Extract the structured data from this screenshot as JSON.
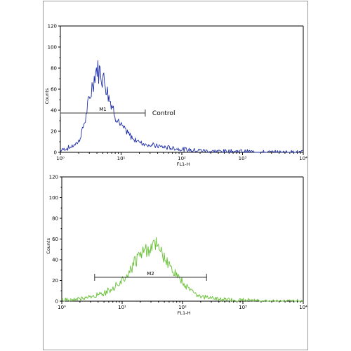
{
  "chart_data": [
    {
      "type": "line",
      "xlabel": "FL1-H",
      "ylabel": "Counts",
      "xscale": "log",
      "xlim": [
        1,
        10000
      ],
      "ylim": [
        0,
        120
      ],
      "x_ticks": [
        "10⁰",
        "10¹",
        "10²",
        "10³",
        "10⁴"
      ],
      "y_ticks": [
        "0",
        "20",
        "40",
        "60",
        "80",
        "100",
        "120"
      ],
      "gate": {
        "label": "M1",
        "range": [
          1,
          25
        ]
      },
      "annotation": "Control",
      "color": "#1f2fa8",
      "series": [
        {
          "x": [
            1.0,
            1.5,
            2.0,
            2.5,
            3.0,
            3.5,
            4.0,
            4.5,
            5.0,
            5.5,
            6.0,
            7.0,
            8.0,
            9.0,
            10,
            12,
            15,
            20,
            25,
            30,
            40,
            50,
            70,
            100,
            150,
            200,
            300,
            500,
            1000,
            2000,
            5000,
            10000
          ],
          "values": [
            2,
            5,
            10,
            28,
            50,
            68,
            80,
            76,
            72,
            66,
            58,
            45,
            36,
            30,
            25,
            20,
            14,
            10,
            8,
            7,
            6,
            5,
            4,
            3,
            2,
            2,
            1,
            1,
            1,
            0,
            0,
            0
          ]
        }
      ]
    },
    {
      "type": "line",
      "xlabel": "FL1-H",
      "ylabel": "Counts",
      "xscale": "log",
      "xlim": [
        1,
        10000
      ],
      "ylim": [
        0,
        120
      ],
      "x_ticks": [
        "10⁰",
        "10¹",
        "10²",
        "10³",
        "10⁴"
      ],
      "y_ticks": [
        "0",
        "20",
        "40",
        "60",
        "80",
        "100",
        "120"
      ],
      "gate": {
        "label": "M2",
        "range": [
          3.5,
          250
        ]
      },
      "color": "#66c133",
      "series": [
        {
          "x": [
            1.0,
            2.0,
            3.0,
            5.0,
            7.0,
            10,
            13,
            16,
            20,
            25,
            30,
            35,
            40,
            50,
            60,
            80,
            100,
            130,
            160,
            200,
            300,
            400,
            600,
            1000,
            2000,
            5000,
            10000
          ],
          "values": [
            1,
            2,
            4,
            8,
            12,
            20,
            28,
            38,
            45,
            50,
            52,
            54,
            50,
            42,
            35,
            25,
            18,
            12,
            8,
            5,
            3,
            2,
            1,
            1,
            0,
            0,
            0
          ]
        }
      ]
    }
  ]
}
